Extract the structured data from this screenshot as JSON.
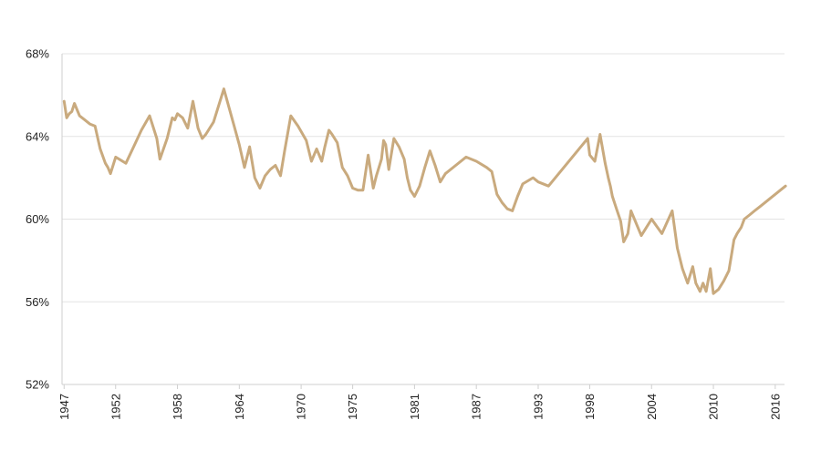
{
  "colors": {
    "line": "#C9AA7E",
    "grid": "#e3e3e3",
    "axis": "#cfcfcf",
    "text": "#222222"
  },
  "chart_data": {
    "type": "line",
    "title": "",
    "xlabel": "",
    "ylabel": "",
    "grid": "horizontal",
    "legend": "none",
    "ylim": [
      52,
      68
    ],
    "xlim": [
      1947,
      2017
    ],
    "y_ticks": [
      52,
      56,
      60,
      64,
      68
    ],
    "y_tick_labels": [
      "52%",
      "56%",
      "60%",
      "64%",
      "68%"
    ],
    "x_ticks": [
      1947,
      1952,
      1958,
      1964,
      1970,
      1975,
      1981,
      1987,
      1993,
      1998,
      2004,
      2010,
      2016
    ],
    "x_tick_labels": [
      "1947",
      "1952",
      "1958",
      "1964",
      "1970",
      "1975",
      "1981",
      "1987",
      "1993",
      "1998",
      "2004",
      "2010",
      "2016"
    ],
    "series": [
      {
        "color": "#C9AA7E",
        "x": [
          1947.0,
          1947.25,
          1947.5,
          1947.75,
          1948.0,
          1948.5,
          1949.0,
          1949.5,
          1950.0,
          1950.5,
          1951.0,
          1951.25,
          1951.5,
          1952.0,
          1953.0,
          1953.75,
          1954.5,
          1955.3,
          1956.0,
          1956.3,
          1957.0,
          1957.5,
          1957.75,
          1958.0,
          1958.5,
          1959.0,
          1959.5,
          1960.0,
          1960.4,
          1960.75,
          1961.5,
          1962.5,
          1963.5,
          1964.0,
          1964.5,
          1965.0,
          1965.5,
          1966.0,
          1966.5,
          1967.0,
          1967.5,
          1968.0,
          1968.4,
          1969.0,
          1969.7,
          1970.5,
          1971.0,
          1971.5,
          1972.0,
          1972.3,
          1972.7,
          1973.0,
          1973.5,
          1974.0,
          1974.5,
          1975.0,
          1975.5,
          1976.0,
          1976.5,
          1977.0,
          1977.3,
          1977.8,
          1978.0,
          1978.2,
          1978.5,
          1979.0,
          1979.5,
          1980.0,
          1980.3,
          1980.6,
          1981.0,
          1981.5,
          1982.0,
          1982.5,
          1983.0,
          1983.5,
          1984.0,
          1985.0,
          1986.0,
          1987.0,
          1988.0,
          1988.5,
          1989.0,
          1989.5,
          1990.0,
          1990.5,
          1991.0,
          1991.5,
          1992.5,
          1993.0,
          1994.0,
          1997.8,
          1998.0,
          1998.5,
          1999.0,
          1999.5,
          1999.8,
          2000.0,
          2000.2,
          2000.6,
          2001.0,
          2001.3,
          2001.7,
          2002.0,
          2003.0,
          2004.0,
          2005.0,
          2006.0,
          2006.5,
          2007.0,
          2007.5,
          2008.0,
          2008.3,
          2008.7,
          2009.0,
          2009.3,
          2009.7,
          2010.0,
          2010.5,
          2011.0,
          2011.5,
          2011.8,
          2012.0,
          2012.3,
          2012.7,
          2013.0,
          2013.5,
          2014.0,
          2014.5,
          2015.0,
          2015.5,
          2016.0,
          2016.5,
          2017.0
        ],
        "values": [
          65.7,
          64.9,
          65.1,
          65.2,
          65.6,
          65.0,
          64.8,
          64.6,
          64.5,
          63.4,
          62.7,
          62.5,
          62.2,
          63.0,
          62.7,
          63.5,
          64.3,
          65.0,
          63.9,
          62.9,
          63.9,
          64.9,
          64.8,
          65.1,
          64.9,
          64.4,
          65.7,
          64.4,
          63.9,
          64.1,
          64.7,
          66.3,
          64.5,
          63.6,
          62.5,
          63.5,
          62.0,
          61.5,
          62.1,
          62.4,
          62.6,
          62.1,
          63.3,
          65.0,
          64.5,
          63.8,
          62.8,
          63.4,
          62.8,
          63.5,
          64.3,
          64.1,
          63.7,
          62.5,
          62.1,
          61.5,
          61.4,
          61.4,
          63.1,
          61.5,
          62.1,
          62.9,
          63.8,
          63.6,
          62.4,
          63.9,
          63.5,
          62.9,
          62.0,
          61.4,
          61.1,
          61.6,
          62.5,
          63.3,
          62.6,
          61.8,
          62.2,
          62.6,
          63.0,
          62.8,
          62.5,
          62.3,
          61.2,
          60.8,
          60.5,
          60.4,
          61.1,
          61.7,
          62.0,
          61.8,
          61.6,
          63.9,
          63.1,
          62.8,
          64.1,
          62.7,
          62.0,
          61.6,
          61.1,
          60.5,
          59.9,
          58.9,
          59.3,
          60.4,
          59.2,
          60.0,
          59.3,
          60.4,
          58.6,
          57.6,
          56.9,
          57.7,
          56.9,
          56.5,
          56.9,
          56.5,
          57.6,
          56.4,
          56.6,
          57.0,
          57.5,
          58.4,
          59.0,
          59.3,
          59.6,
          60.0,
          60.2,
          60.4,
          60.6,
          60.8,
          61.0,
          61.2,
          61.4,
          61.6
        ]
      }
    ]
  }
}
